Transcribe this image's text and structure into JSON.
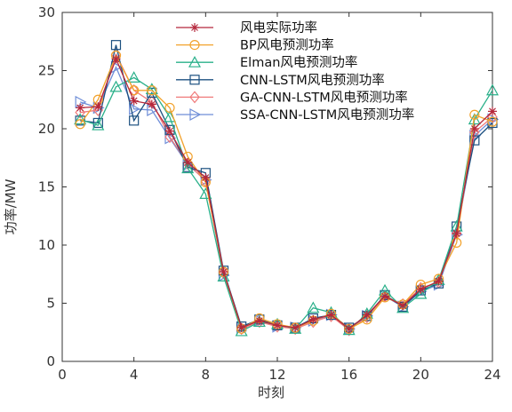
{
  "chart_data": {
    "type": "line",
    "title": "",
    "xlabel": "时刻",
    "ylabel": "功率/MW",
    "xlim": [
      0,
      24
    ],
    "ylim": [
      0,
      30
    ],
    "xticks": [
      0,
      4,
      8,
      12,
      16,
      20,
      24
    ],
    "yticks": [
      0,
      5,
      10,
      15,
      20,
      25,
      30
    ],
    "grid": false,
    "legend_position": "top-center",
    "x": [
      1,
      2,
      3,
      4,
      5,
      6,
      7,
      8,
      9,
      10,
      11,
      12,
      13,
      14,
      15,
      16,
      17,
      18,
      19,
      20,
      21,
      22,
      23,
      24
    ],
    "series": [
      {
        "name": "风电实际功率",
        "color": "#b5283c",
        "marker": "asterisk",
        "values": [
          21.8,
          21.9,
          26.0,
          22.4,
          22.1,
          19.8,
          17.1,
          15.8,
          7.7,
          2.9,
          3.5,
          3.1,
          2.9,
          3.6,
          4.0,
          2.8,
          4.0,
          5.6,
          4.8,
          6.2,
          6.9,
          11.0,
          20.0,
          21.5
        ]
      },
      {
        "name": "BP风电预测功率",
        "color": "#f2a22c",
        "marker": "circle",
        "values": [
          20.4,
          22.5,
          26.3,
          23.3,
          23.3,
          21.8,
          17.6,
          15.4,
          7.7,
          2.8,
          3.7,
          3.2,
          2.9,
          3.5,
          4.1,
          2.8,
          3.6,
          5.5,
          4.9,
          6.6,
          7.1,
          10.2,
          21.2,
          20.6
        ]
      },
      {
        "name": "Elman风电预测功率",
        "color": "#2ab08a",
        "marker": "triangle-up",
        "values": [
          20.8,
          20.3,
          23.6,
          24.4,
          23.4,
          21.0,
          16.6,
          14.4,
          7.3,
          2.6,
          3.4,
          3.2,
          2.8,
          4.6,
          4.2,
          2.7,
          4.1,
          6.1,
          4.6,
          5.8,
          7.0,
          11.6,
          20.8,
          23.3
        ]
      },
      {
        "name": "CNN-LSTM风电预测功率",
        "color": "#1c5080",
        "marker": "square",
        "values": [
          20.7,
          20.5,
          27.2,
          20.7,
          23.1,
          19.9,
          16.7,
          16.2,
          7.8,
          3.0,
          3.6,
          3.1,
          2.9,
          3.7,
          4.0,
          2.9,
          3.9,
          5.7,
          4.7,
          6.1,
          6.7,
          11.6,
          19.0,
          20.5
        ]
      },
      {
        "name": "GA-CNN-LSTM风电预测功率",
        "color": "#f07a7a",
        "marker": "diamond",
        "values": [
          21.4,
          21.6,
          26.4,
          23.3,
          22.3,
          19.3,
          17.0,
          15.5,
          7.6,
          2.8,
          3.4,
          3.0,
          2.8,
          3.4,
          3.9,
          2.7,
          3.8,
          5.6,
          4.9,
          6.3,
          6.8,
          11.0,
          19.7,
          21.0
        ]
      },
      {
        "name": "SSA-CNN-LSTM风电预测功率",
        "color": "#6f8ed8",
        "marker": "triangle-right",
        "values": [
          22.3,
          21.8,
          25.3,
          21.7,
          21.6,
          19.2,
          16.9,
          15.6,
          7.4,
          2.9,
          3.5,
          3.0,
          2.9,
          3.5,
          4.0,
          2.8,
          3.9,
          5.6,
          4.7,
          6.0,
          6.6,
          10.9,
          19.4,
          20.8
        ]
      }
    ]
  }
}
